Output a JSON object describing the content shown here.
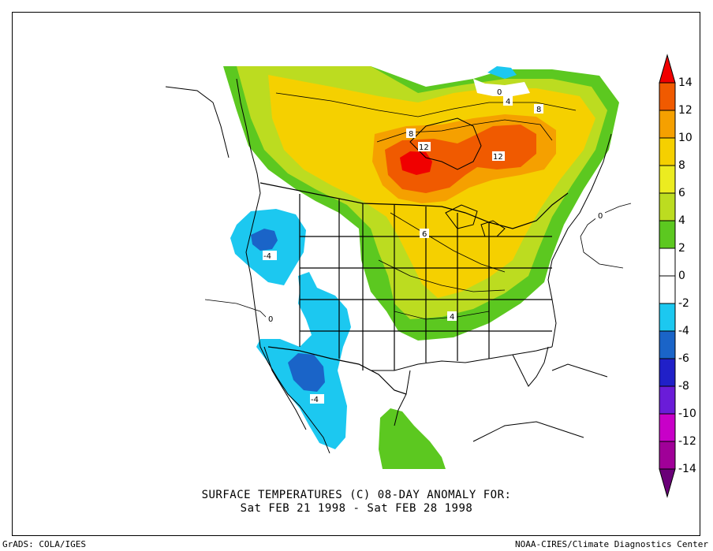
{
  "title_line1": "SURFACE TEMPERATURES (C)   08-DAY ANOMALY FOR:",
  "title_line2": "Sat FEB 21 1998 - Sat FEB 28 1998",
  "footer_left": "GrADS: COLA/IGES",
  "footer_right": "NOAA-CIRES/Climate Diagnostics Center",
  "colorbar": {
    "ticks": [
      "14",
      "12",
      "10",
      "8",
      "6",
      "4",
      "2",
      "0",
      "-2",
      "-4",
      "-6",
      "-8",
      "-10",
      "-12",
      "-14"
    ],
    "colors": [
      "#f00000",
      "#f05a00",
      "#f5a000",
      "#f5d000",
      "#ecec20",
      "#bcdc20",
      "#5cc820",
      "#ffffff",
      "#1cc8f0",
      "#1a64c8",
      "#2020c8",
      "#6a1cd8",
      "#c800c8",
      "#a00098",
      "#6a0078"
    ]
  },
  "contour_labels": {
    "l_0_north": "0",
    "l_4_north": "4",
    "l_8_ne": "8",
    "l_8_hb": "8",
    "l_12_a": "12",
    "l_12_b": "12",
    "l_6": "6",
    "l_4_south": "4",
    "l_neg4_nw": "-4",
    "l_neg4_sw": "-4",
    "l_0_west": "0",
    "l_0_atl": "0"
  }
}
